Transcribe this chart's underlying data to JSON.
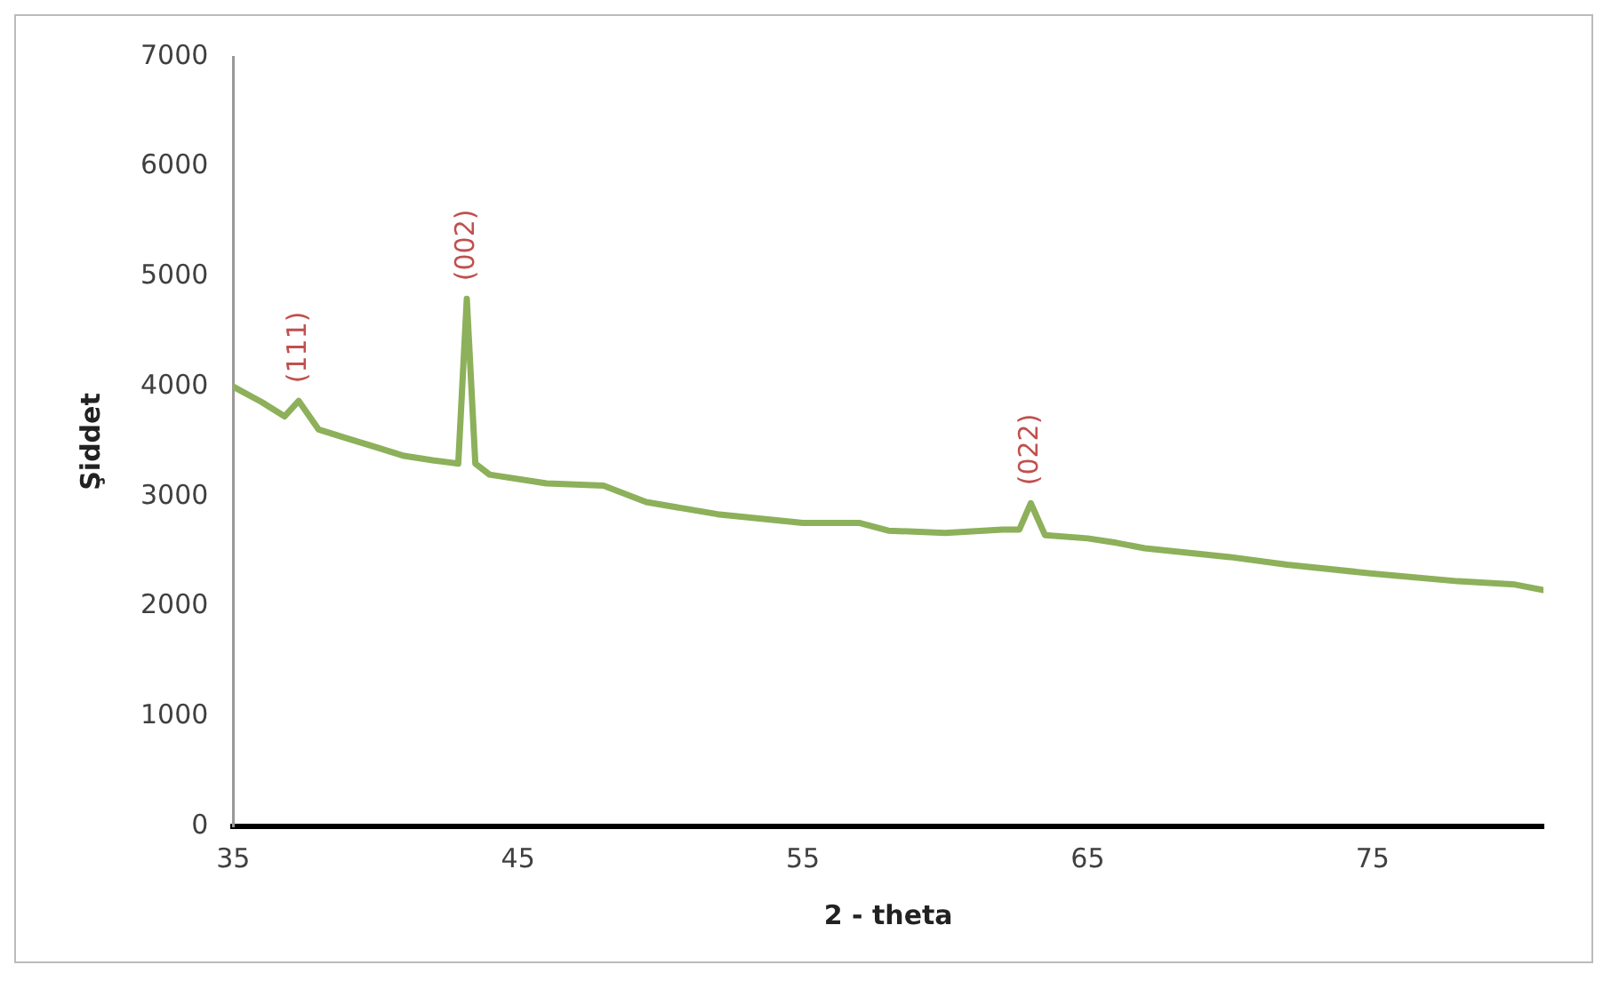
{
  "chart_data": {
    "type": "line",
    "xlabel": "2 - theta",
    "ylabel": "Şiddet",
    "xlim": [
      35,
      81
    ],
    "xticks": [
      35,
      45,
      55,
      65,
      75
    ],
    "ylim": [
      0,
      7000
    ],
    "yticks": [
      0,
      1000,
      2000,
      3000,
      4000,
      5000,
      6000,
      7000
    ],
    "grid": false,
    "legend": false,
    "marker": "none",
    "line_style": "solid",
    "series": [
      {
        "color": "#8db05a",
        "x": [
          35,
          36,
          36.8,
          37.3,
          38,
          39,
          40,
          41,
          42,
          42.9,
          43.2,
          43.5,
          44,
          46,
          48,
          49.5,
          52,
          55,
          57,
          58,
          60,
          62,
          62.6,
          63,
          63.5,
          65,
          66,
          67,
          70,
          72,
          75,
          78,
          80,
          81
        ],
        "values": [
          4000,
          3860,
          3730,
          3870,
          3610,
          3530,
          3450,
          3370,
          3330,
          3300,
          4800,
          3300,
          3200,
          3120,
          3100,
          2950,
          2840,
          2760,
          2760,
          2690,
          2670,
          2700,
          2700,
          2940,
          2650,
          2620,
          2580,
          2530,
          2450,
          2380,
          2300,
          2230,
          2200,
          2150
        ]
      }
    ],
    "annotations": [
      {
        "text": "(111)",
        "x": 37.3,
        "y": 3870
      },
      {
        "text": "(002)",
        "x": 43.2,
        "y": 4800
      },
      {
        "text": "(022)",
        "x": 63,
        "y": 2940
      }
    ]
  }
}
